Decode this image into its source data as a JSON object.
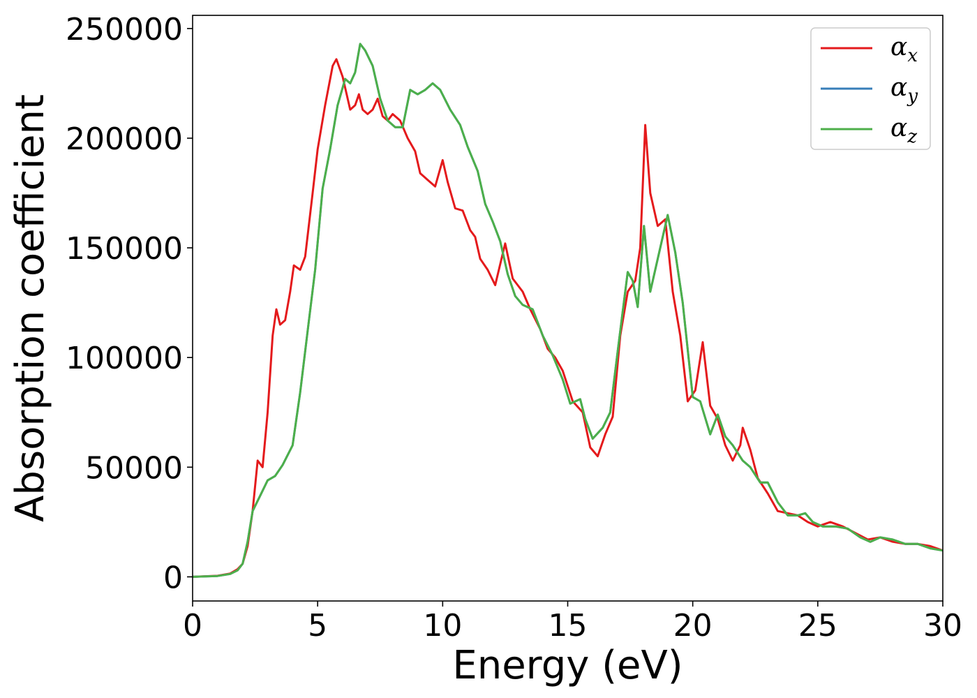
{
  "chart_data": {
    "type": "line",
    "xlabel": "Energy (eV)",
    "ylabel": "Absorption coefficient",
    "xlim": [
      0,
      30
    ],
    "ylim": [
      -11000,
      256000
    ],
    "xticks": [
      0,
      5,
      10,
      15,
      20,
      25,
      30
    ],
    "yticks": [
      0,
      50000,
      100000,
      150000,
      200000,
      250000
    ],
    "xtick_labels": [
      "0",
      "5",
      "10",
      "15",
      "20",
      "25",
      "30"
    ],
    "ytick_labels": [
      "0",
      "50000",
      "100000",
      "150000",
      "200000",
      "250000"
    ],
    "grid": false,
    "legend_position": "top-right",
    "series": [
      {
        "name": "α_x",
        "legend_symbol": "α",
        "legend_sub": "x",
        "color": "#e41a1c",
        "points": [
          [
            0,
            0
          ],
          [
            1,
            500
          ],
          [
            1.5,
            1500
          ],
          [
            1.8,
            3500
          ],
          [
            2,
            6000
          ],
          [
            2.2,
            14000
          ],
          [
            2.4,
            30000
          ],
          [
            2.6,
            53000
          ],
          [
            2.8,
            50000
          ],
          [
            3,
            75000
          ],
          [
            3.2,
            110000
          ],
          [
            3.35,
            122000
          ],
          [
            3.5,
            115000
          ],
          [
            3.7,
            117000
          ],
          [
            3.9,
            130000
          ],
          [
            4.05,
            142000
          ],
          [
            4.3,
            140000
          ],
          [
            4.5,
            146000
          ],
          [
            4.8,
            175000
          ],
          [
            5,
            195000
          ],
          [
            5.3,
            215000
          ],
          [
            5.6,
            233000
          ],
          [
            5.75,
            236000
          ],
          [
            6,
            228000
          ],
          [
            6.3,
            213000
          ],
          [
            6.5,
            215000
          ],
          [
            6.65,
            220000
          ],
          [
            6.8,
            213000
          ],
          [
            7,
            211000
          ],
          [
            7.2,
            213000
          ],
          [
            7.4,
            218000
          ],
          [
            7.6,
            210000
          ],
          [
            7.8,
            208000
          ],
          [
            8,
            211000
          ],
          [
            8.3,
            208000
          ],
          [
            8.6,
            200000
          ],
          [
            8.9,
            194000
          ],
          [
            9.1,
            184000
          ],
          [
            9.4,
            181000
          ],
          [
            9.7,
            178000
          ],
          [
            10,
            190000
          ],
          [
            10.2,
            180000
          ],
          [
            10.5,
            168000
          ],
          [
            10.8,
            167000
          ],
          [
            11.1,
            158000
          ],
          [
            11.3,
            155000
          ],
          [
            11.5,
            145000
          ],
          [
            11.8,
            140000
          ],
          [
            12.1,
            133000
          ],
          [
            12.5,
            152000
          ],
          [
            12.8,
            136000
          ],
          [
            13.2,
            130000
          ],
          [
            13.5,
            122000
          ],
          [
            13.9,
            113000
          ],
          [
            14.2,
            104000
          ],
          [
            14.5,
            100000
          ],
          [
            14.8,
            94000
          ],
          [
            15.2,
            80000
          ],
          [
            15.6,
            75000
          ],
          [
            15.9,
            59000
          ],
          [
            16.2,
            55000
          ],
          [
            16.5,
            65000
          ],
          [
            16.8,
            73000
          ],
          [
            17.1,
            110000
          ],
          [
            17.4,
            130000
          ],
          [
            17.7,
            135000
          ],
          [
            17.9,
            150000
          ],
          [
            18.1,
            206000
          ],
          [
            18.3,
            175000
          ],
          [
            18.6,
            160000
          ],
          [
            18.9,
            163000
          ],
          [
            19.2,
            130000
          ],
          [
            19.5,
            110000
          ],
          [
            19.8,
            80000
          ],
          [
            20.1,
            85000
          ],
          [
            20.4,
            107000
          ],
          [
            20.7,
            78000
          ],
          [
            21,
            72000
          ],
          [
            21.3,
            60000
          ],
          [
            21.6,
            53000
          ],
          [
            21.9,
            60000
          ],
          [
            22,
            68000
          ],
          [
            22.3,
            58000
          ],
          [
            22.6,
            45000
          ],
          [
            23,
            38000
          ],
          [
            23.4,
            30000
          ],
          [
            23.8,
            29000
          ],
          [
            24.2,
            28000
          ],
          [
            24.6,
            25000
          ],
          [
            25,
            23000
          ],
          [
            25.5,
            25000
          ],
          [
            26,
            23000
          ],
          [
            26.5,
            20000
          ],
          [
            27,
            17000
          ],
          [
            27.5,
            18000
          ],
          [
            28,
            16000
          ],
          [
            28.5,
            15000
          ],
          [
            29,
            15000
          ],
          [
            29.5,
            14000
          ],
          [
            30,
            12000
          ]
        ]
      },
      {
        "name": "α_y",
        "legend_symbol": "α",
        "legend_sub": "y",
        "color": "#377eb8",
        "points": [
          [
            0,
            0
          ],
          [
            1,
            400
          ],
          [
            1.5,
            1300
          ],
          [
            1.8,
            3000
          ],
          [
            2,
            6000
          ],
          [
            2.2,
            16000
          ],
          [
            2.4,
            30000
          ],
          [
            2.7,
            37000
          ],
          [
            3,
            44000
          ],
          [
            3.3,
            46000
          ],
          [
            3.6,
            51000
          ],
          [
            4,
            60000
          ],
          [
            4.3,
            84000
          ],
          [
            4.6,
            112000
          ],
          [
            4.9,
            140000
          ],
          [
            5.2,
            177000
          ],
          [
            5.5,
            195000
          ],
          [
            5.8,
            215000
          ],
          [
            6.1,
            227000
          ],
          [
            6.3,
            225000
          ],
          [
            6.5,
            230000
          ],
          [
            6.7,
            243000
          ],
          [
            6.9,
            240000
          ],
          [
            7.2,
            233000
          ],
          [
            7.5,
            218000
          ],
          [
            7.8,
            208000
          ],
          [
            8.1,
            205000
          ],
          [
            8.4,
            205000
          ],
          [
            8.7,
            222000
          ],
          [
            9,
            220000
          ],
          [
            9.3,
            222000
          ],
          [
            9.6,
            225000
          ],
          [
            9.9,
            222000
          ],
          [
            10.3,
            213000
          ],
          [
            10.7,
            206000
          ],
          [
            11,
            196000
          ],
          [
            11.4,
            185000
          ],
          [
            11.7,
            170000
          ],
          [
            12,
            162000
          ],
          [
            12.3,
            153000
          ],
          [
            12.6,
            138000
          ],
          [
            12.9,
            128000
          ],
          [
            13.2,
            124000
          ],
          [
            13.6,
            122000
          ],
          [
            14,
            110000
          ],
          [
            14.4,
            101000
          ],
          [
            14.8,
            90000
          ],
          [
            15.1,
            79000
          ],
          [
            15.5,
            81000
          ],
          [
            15.7,
            72000
          ],
          [
            16,
            63000
          ],
          [
            16.4,
            68000
          ],
          [
            16.7,
            75000
          ],
          [
            17,
            103000
          ],
          [
            17.4,
            139000
          ],
          [
            17.6,
            135000
          ],
          [
            17.8,
            123000
          ],
          [
            18.05,
            160000
          ],
          [
            18.3,
            130000
          ],
          [
            18.6,
            145000
          ],
          [
            19,
            165000
          ],
          [
            19.3,
            148000
          ],
          [
            19.6,
            125000
          ],
          [
            20,
            82000
          ],
          [
            20.3,
            80000
          ],
          [
            20.7,
            65000
          ],
          [
            21,
            74000
          ],
          [
            21.3,
            64000
          ],
          [
            21.6,
            60000
          ],
          [
            22,
            53000
          ],
          [
            22.3,
            50000
          ],
          [
            22.7,
            43000
          ],
          [
            23,
            43000
          ],
          [
            23.4,
            34000
          ],
          [
            23.8,
            28000
          ],
          [
            24.2,
            28000
          ],
          [
            24.5,
            29000
          ],
          [
            24.8,
            25000
          ],
          [
            25.2,
            23000
          ],
          [
            25.7,
            23000
          ],
          [
            26.2,
            22000
          ],
          [
            26.7,
            18000
          ],
          [
            27.1,
            16000
          ],
          [
            27.5,
            18000
          ],
          [
            28,
            17000
          ],
          [
            28.5,
            15000
          ],
          [
            29,
            15000
          ],
          [
            29.5,
            13000
          ],
          [
            30,
            12000
          ]
        ]
      },
      {
        "name": "α_z",
        "legend_symbol": "α",
        "legend_sub": "z",
        "color": "#4daf4a",
        "points": [
          [
            0,
            0
          ],
          [
            1,
            400
          ],
          [
            1.5,
            1300
          ],
          [
            1.8,
            3000
          ],
          [
            2,
            6000
          ],
          [
            2.2,
            16000
          ],
          [
            2.4,
            30000
          ],
          [
            2.7,
            37000
          ],
          [
            3,
            44000
          ],
          [
            3.3,
            46000
          ],
          [
            3.6,
            51000
          ],
          [
            4,
            60000
          ],
          [
            4.3,
            84000
          ],
          [
            4.6,
            112000
          ],
          [
            4.9,
            140000
          ],
          [
            5.2,
            177000
          ],
          [
            5.5,
            195000
          ],
          [
            5.8,
            215000
          ],
          [
            6.1,
            227000
          ],
          [
            6.3,
            225000
          ],
          [
            6.5,
            230000
          ],
          [
            6.7,
            243000
          ],
          [
            6.9,
            240000
          ],
          [
            7.2,
            233000
          ],
          [
            7.5,
            218000
          ],
          [
            7.8,
            208000
          ],
          [
            8.1,
            205000
          ],
          [
            8.4,
            205000
          ],
          [
            8.7,
            222000
          ],
          [
            9,
            220000
          ],
          [
            9.3,
            222000
          ],
          [
            9.6,
            225000
          ],
          [
            9.9,
            222000
          ],
          [
            10.3,
            213000
          ],
          [
            10.7,
            206000
          ],
          [
            11,
            196000
          ],
          [
            11.4,
            185000
          ],
          [
            11.7,
            170000
          ],
          [
            12,
            162000
          ],
          [
            12.3,
            153000
          ],
          [
            12.6,
            138000
          ],
          [
            12.9,
            128000
          ],
          [
            13.2,
            124000
          ],
          [
            13.6,
            122000
          ],
          [
            14,
            110000
          ],
          [
            14.4,
            101000
          ],
          [
            14.8,
            90000
          ],
          [
            15.1,
            79000
          ],
          [
            15.5,
            81000
          ],
          [
            15.7,
            72000
          ],
          [
            16,
            63000
          ],
          [
            16.4,
            68000
          ],
          [
            16.7,
            75000
          ],
          [
            17,
            103000
          ],
          [
            17.4,
            139000
          ],
          [
            17.6,
            135000
          ],
          [
            17.8,
            123000
          ],
          [
            18.05,
            160000
          ],
          [
            18.3,
            130000
          ],
          [
            18.6,
            145000
          ],
          [
            19,
            165000
          ],
          [
            19.3,
            148000
          ],
          [
            19.6,
            125000
          ],
          [
            20,
            82000
          ],
          [
            20.3,
            80000
          ],
          [
            20.7,
            65000
          ],
          [
            21,
            74000
          ],
          [
            21.3,
            64000
          ],
          [
            21.6,
            60000
          ],
          [
            22,
            53000
          ],
          [
            22.3,
            50000
          ],
          [
            22.7,
            43000
          ],
          [
            23,
            43000
          ],
          [
            23.4,
            34000
          ],
          [
            23.8,
            28000
          ],
          [
            24.2,
            28000
          ],
          [
            24.5,
            29000
          ],
          [
            24.8,
            25000
          ],
          [
            25.2,
            23000
          ],
          [
            25.7,
            23000
          ],
          [
            26.2,
            22000
          ],
          [
            26.7,
            18000
          ],
          [
            27.1,
            16000
          ],
          [
            27.5,
            18000
          ],
          [
            28,
            17000
          ],
          [
            28.5,
            15000
          ],
          [
            29,
            15000
          ],
          [
            29.5,
            13000
          ],
          [
            30,
            12000
          ]
        ]
      }
    ]
  }
}
